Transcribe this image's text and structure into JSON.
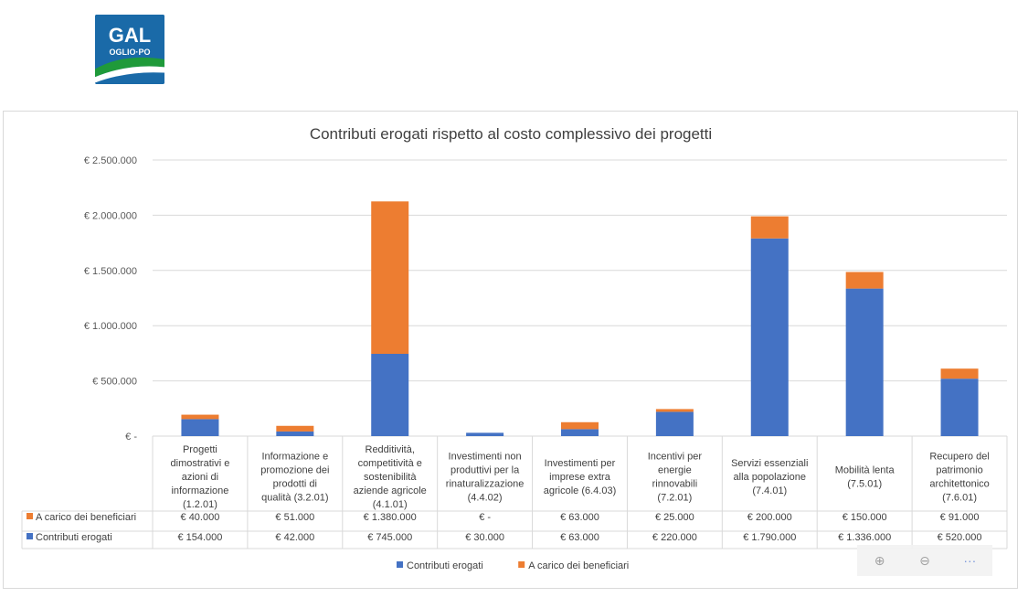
{
  "logo": {
    "text_top": "GAL",
    "text_bottom": "OGLIO·PO",
    "bg_color": "#1a6aa8",
    "swoosh_color": "#1f9a3a"
  },
  "chart_data": {
    "type": "bar",
    "stacked": true,
    "title": "Contributi erogati rispetto al costo complessivo dei progetti",
    "xlabel": "",
    "ylabel": "",
    "ylim": [
      0,
      2500000
    ],
    "yticks": [
      0,
      500000,
      1000000,
      1500000,
      2000000,
      2500000
    ],
    "ytick_labels": [
      "€ -",
      "€ 500.000",
      "€ 1.000.000",
      "€ 1.500.000",
      "€ 2.000.000",
      "€ 2.500.000"
    ],
    "grid": true,
    "legend_position": "bottom",
    "categories": [
      [
        "Progetti",
        "dimostrativi e",
        "azioni di",
        "informazione",
        "(1.2.01)"
      ],
      [
        "Informazione e",
        "promozione dei",
        "prodotti di",
        "qualità (3.2.01)"
      ],
      [
        "Redditività,",
        "competitività e",
        "sostenibilità",
        "aziende agricole",
        "(4.1.01)"
      ],
      [
        "Investimenti non",
        "produttivi per la",
        "rinaturalizzazione",
        "(4.4.02)"
      ],
      [
        "Investimenti per",
        "imprese extra",
        "agricole (6.4.03)"
      ],
      [
        "Incentivi per",
        "energie",
        "rinnovabili",
        "(7.2.01)"
      ],
      [
        "Servizi essenziali",
        "alla popolazione",
        "(7.4.01)"
      ],
      [
        "Mobilità lenta",
        "(7.5.01)"
      ],
      [
        "Recupero del",
        "patrimonio",
        "architettonico",
        "(7.6.01)"
      ]
    ],
    "series": [
      {
        "name": "Contributi erogati",
        "color": "#4472c4",
        "values": [
          154000,
          42000,
          745000,
          30000,
          63000,
          220000,
          1790000,
          1336000,
          520000
        ],
        "labels": [
          "€ 154.000",
          "€ 42.000",
          "€ 745.000",
          "€ 30.000",
          "€ 63.000",
          "€ 220.000",
          "€ 1.790.000",
          "€ 1.336.000",
          "€ 520.000"
        ]
      },
      {
        "name": "A carico dei beneficiari",
        "color": "#ed7d31",
        "values": [
          40000,
          51000,
          1380000,
          0,
          63000,
          25000,
          200000,
          150000,
          91000
        ],
        "labels": [
          "€ 40.000",
          "€ 51.000",
          "€ 1.380.000",
          "€ -",
          "€ 63.000",
          "€ 25.000",
          "€ 200.000",
          "€ 150.000",
          "€ 91.000"
        ]
      }
    ],
    "table_row_order": [
      1,
      0
    ],
    "legend_order": [
      0,
      1
    ]
  },
  "toolbar": {
    "zoom_in_icon": "zoom-in-icon",
    "zoom_out_icon": "zoom-out-icon",
    "more_icon": "more-icon",
    "zoom_in_glyph": "⊕",
    "zoom_out_glyph": "⊖",
    "more_glyph": "···"
  }
}
